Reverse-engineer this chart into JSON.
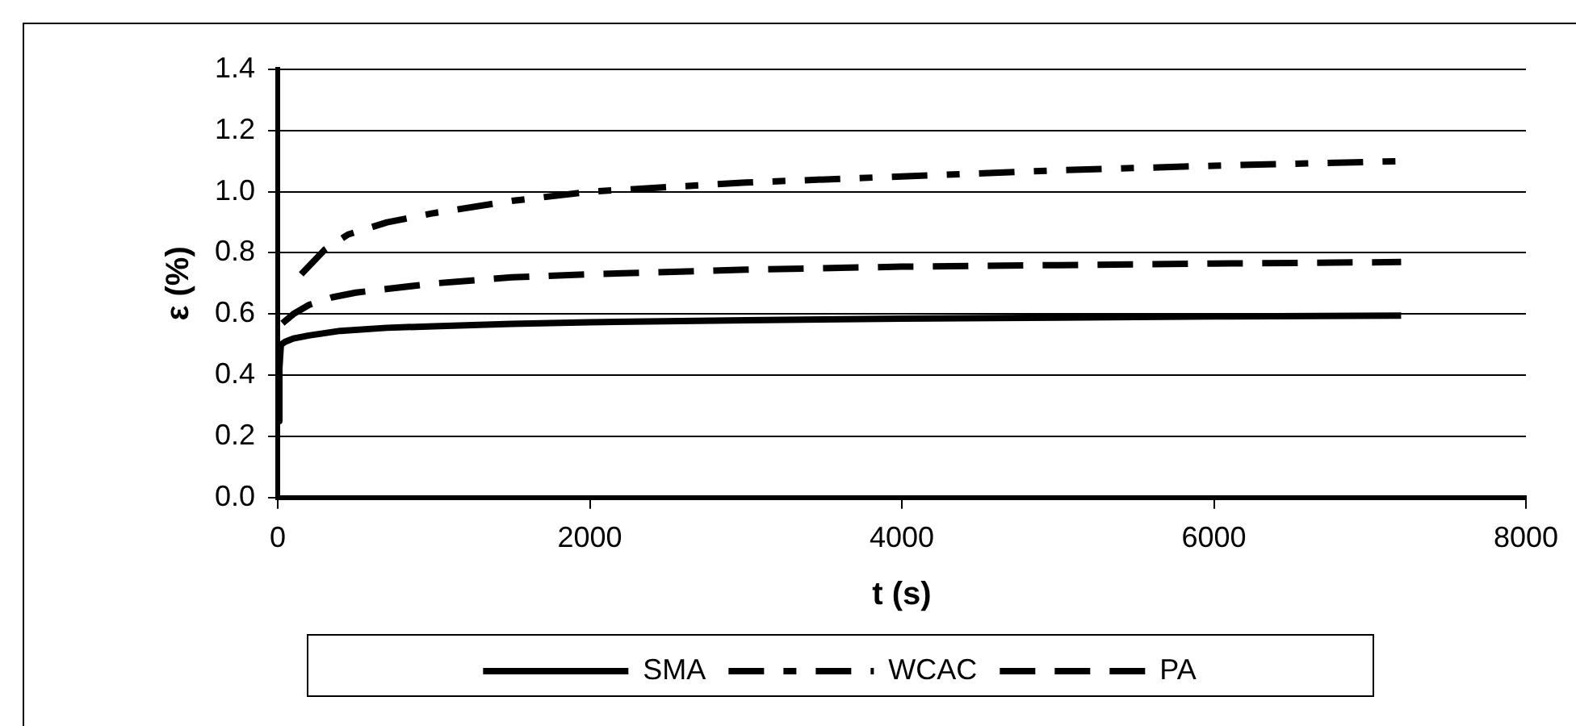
{
  "chart_data": {
    "type": "line",
    "xlabel": "t (s)",
    "ylabel": "ε (%)",
    "xlim": [
      0,
      8000
    ],
    "xticks": [
      0,
      2000,
      4000,
      6000,
      8000
    ],
    "ylim": [
      0,
      1.4
    ],
    "yticks": [
      {
        "value": 0,
        "label": "0.0"
      },
      0.2,
      0.4,
      0.6,
      0.8,
      {
        "value": 1,
        "label": "1.0"
      },
      1.2,
      1.4
    ],
    "grid": "y",
    "legend": "bottom",
    "marker": "none",
    "series": [
      {
        "name": "SMA",
        "color": "#000000",
        "line_style": "solid",
        "x": [
          5,
          10,
          20,
          50,
          100,
          200,
          400,
          700,
          1000,
          1500,
          2000,
          3000,
          4000,
          5000,
          6000,
          7200
        ],
        "values": [
          0.25,
          0.42,
          0.5,
          0.51,
          0.52,
          0.53,
          0.545,
          0.555,
          0.56,
          0.568,
          0.573,
          0.58,
          0.585,
          0.588,
          0.592,
          0.595
        ]
      },
      {
        "name": "WCAC",
        "color": "#000000",
        "line_style": "dashdot",
        "x": [
          150,
          300,
          450,
          700,
          1000,
          1500,
          2000,
          3000,
          4000,
          5000,
          6000,
          7200
        ],
        "values": [
          0.73,
          0.81,
          0.86,
          0.9,
          0.93,
          0.97,
          1.0,
          1.03,
          1.05,
          1.07,
          1.085,
          1.1
        ]
      },
      {
        "name": "PA",
        "color": "#000000",
        "line_style": "dashed",
        "x": [
          30,
          100,
          200,
          350,
          500,
          1000,
          1500,
          2000,
          3000,
          4000,
          5000,
          6000,
          7200
        ],
        "values": [
          0.57,
          0.6,
          0.63,
          0.655,
          0.67,
          0.7,
          0.72,
          0.73,
          0.745,
          0.755,
          0.76,
          0.765,
          0.77
        ]
      }
    ]
  }
}
